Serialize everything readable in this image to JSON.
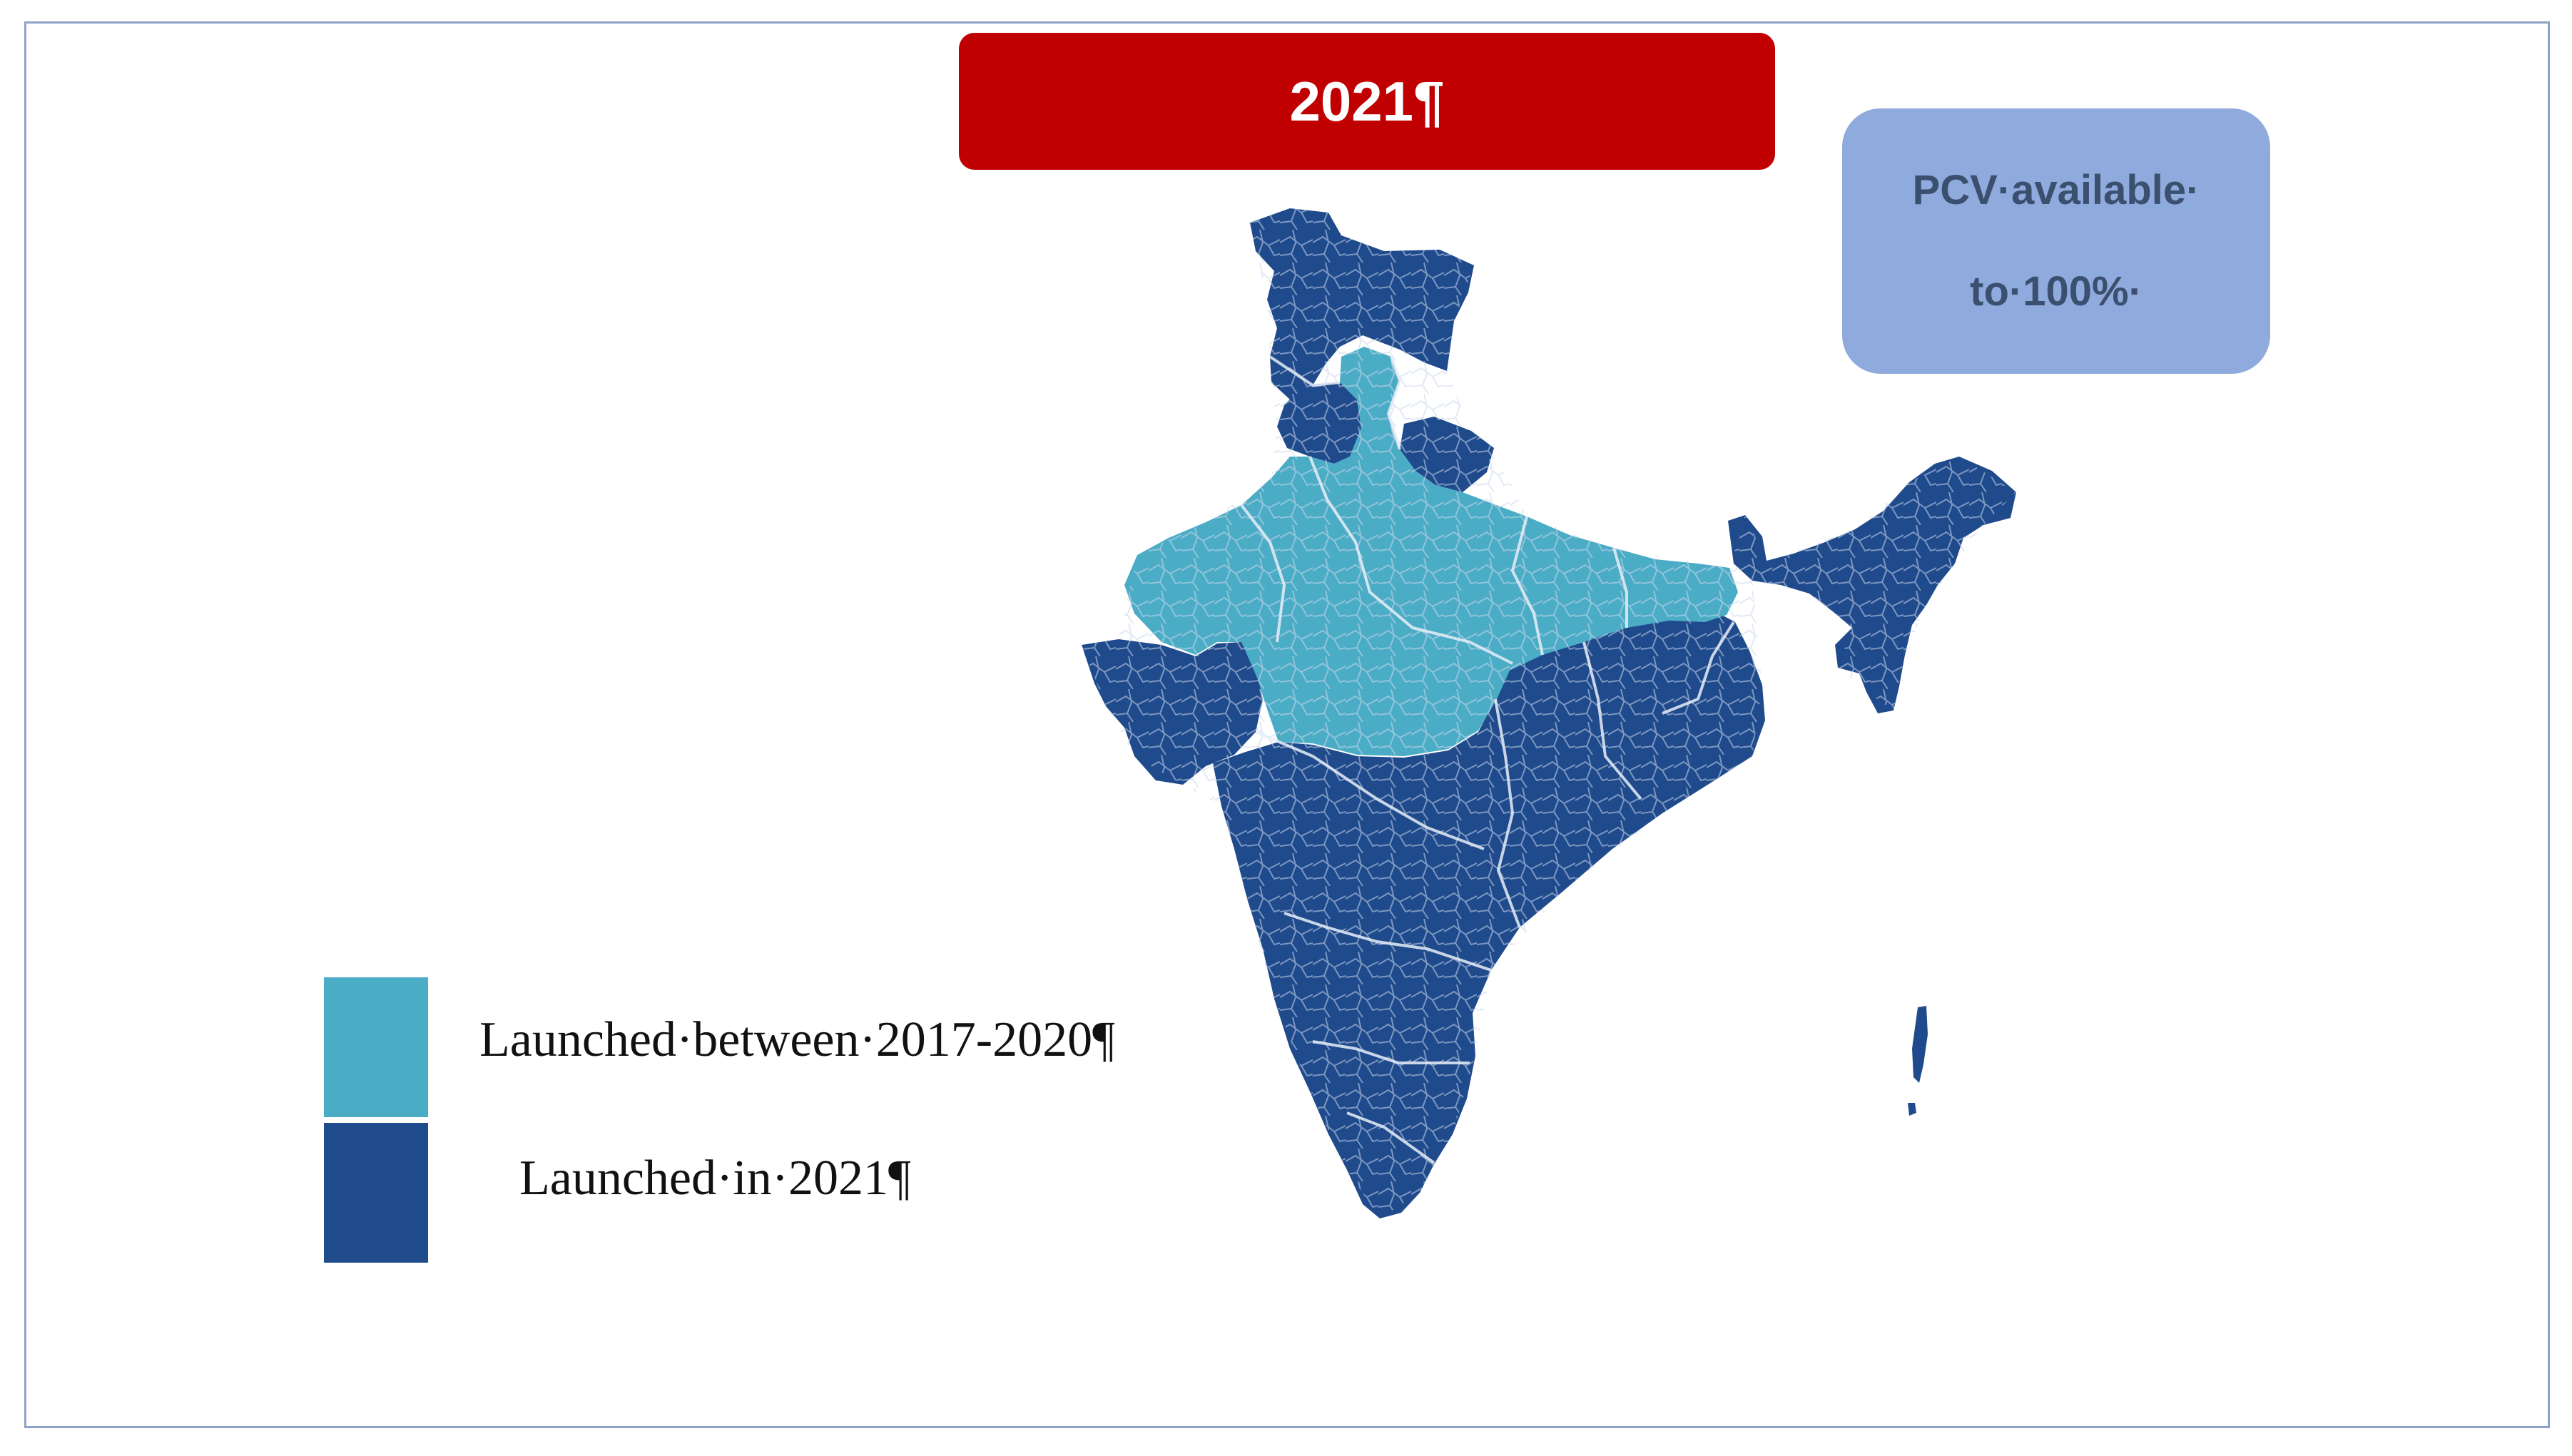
{
  "banner": {
    "year": "2021¶"
  },
  "coverage": {
    "line1": "PCV·available·",
    "line2": "to·100%·"
  },
  "legend": {
    "items": [
      {
        "label": "Launched·between·2017-2020¶",
        "color": "#4bacc6"
      },
      {
        "label": "Launched·in·2021¶",
        "color": "#1f4a8c"
      }
    ]
  },
  "colors": {
    "launched_2017_2020": "#4bacc6",
    "launched_2021": "#1f4a8c",
    "banner": "#c00000",
    "coverage_box": "#8faadc",
    "district_borders": "#c9d6ea"
  }
}
